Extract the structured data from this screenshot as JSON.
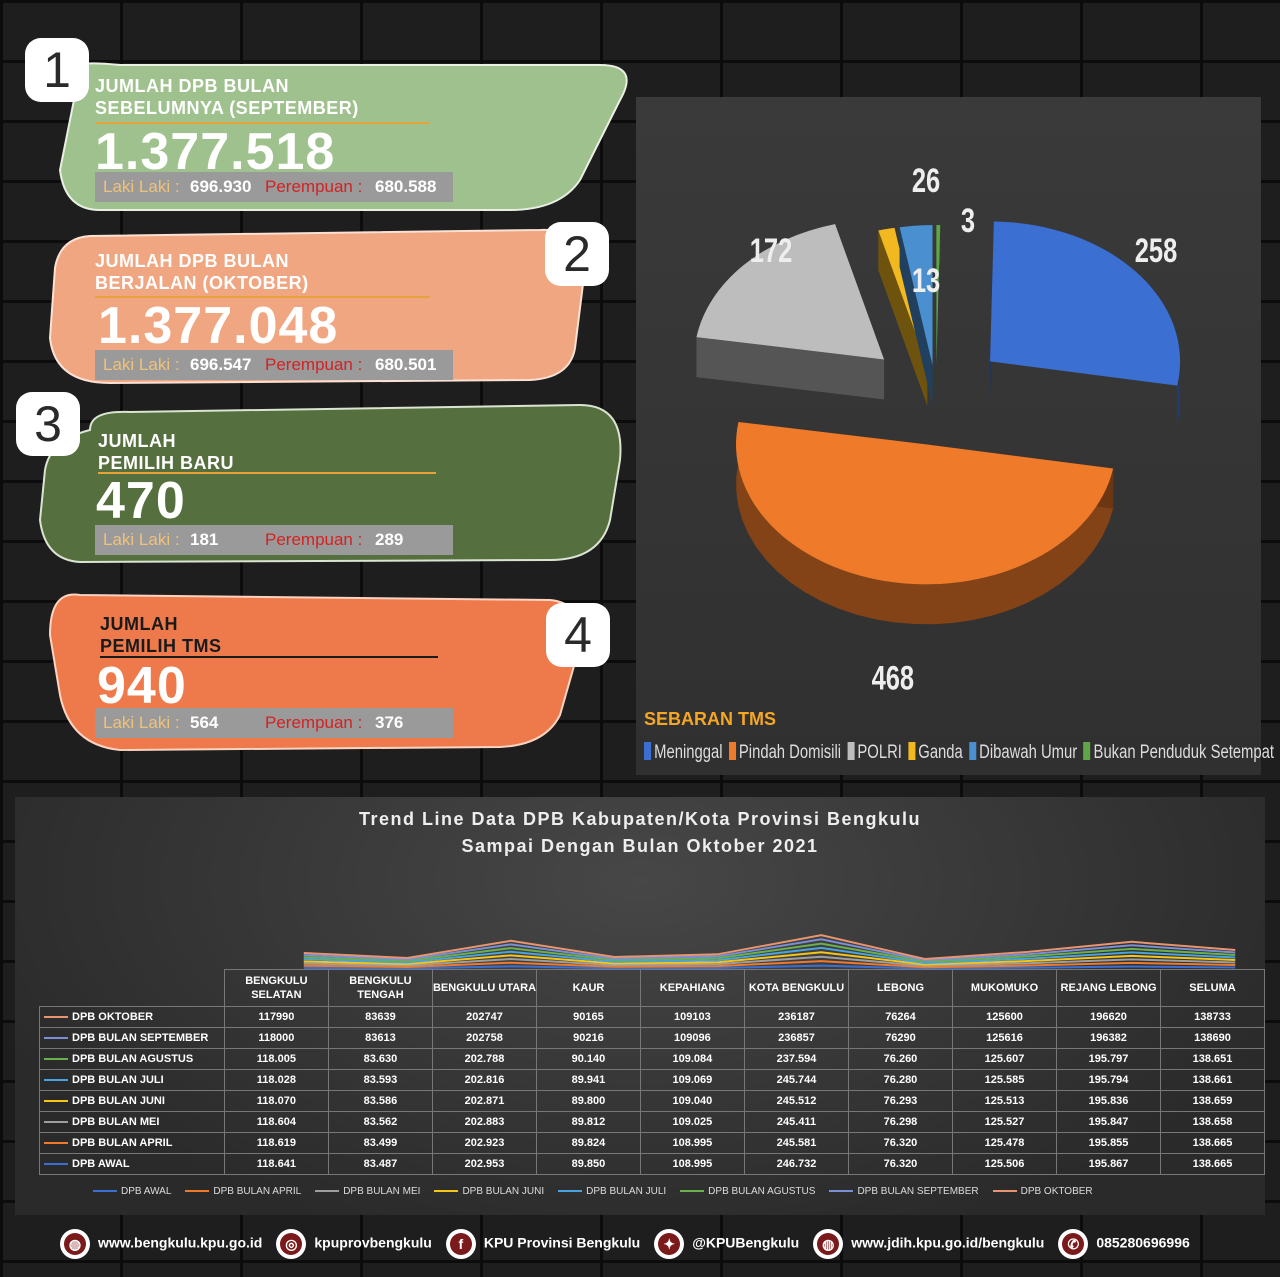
{
  "cards": [
    {
      "number": "1",
      "title_line1": "JUMLAH DPB BULAN",
      "title_line2": "SEBELUMNYA (SEPTEMBER)",
      "total": "1.377.518",
      "male_label": "Laki Laki :",
      "male": "696.930",
      "female_label": "Perempuan :",
      "female": "680.588",
      "color": "#9fc18d"
    },
    {
      "number": "2",
      "title_line1": "JUMLAH DPB BULAN",
      "title_line2": "BERJALAN (OKTOBER)",
      "total": "1.377.048",
      "male_label": "Laki Laki :",
      "male": "696.547",
      "female_label": "Perempuan :",
      "female": "680.501",
      "color": "#f0a681"
    },
    {
      "number": "3",
      "title_line1": "JUMLAH",
      "title_line2": "PEMILIH BARU",
      "total": "470",
      "male_label": "Laki Laki :",
      "male": "181",
      "female_label": "Perempuan :",
      "female": "289",
      "color": "#55703e"
    },
    {
      "number": "4",
      "title_line1": "JUMLAH",
      "title_line2": "PEMILIH TMS",
      "total": "940",
      "male_label": "Laki Laki :",
      "male": "564",
      "female_label": "Perempuan :",
      "female": "376",
      "color": "#ee7a4b"
    }
  ],
  "pie": {
    "title": "SEBARAN TMS",
    "chart_data": {
      "type": "pie",
      "title": "SEBARAN TMS",
      "slices": [
        {
          "label": "Meninggal",
          "value": 258,
          "color": "#3b6fd1"
        },
        {
          "label": "Pindah Domisili",
          "value": 468,
          "color": "#ee7a2a"
        },
        {
          "label": "POLRI",
          "value": 172,
          "color": "#bdbdbd"
        },
        {
          "label": "Ganda",
          "value": 13,
          "color": "#f2b820"
        },
        {
          "label": "Dibawah Umur",
          "value": 26,
          "color": "#4a8fd0"
        },
        {
          "label": "Bukan Penduduk Setempat",
          "value": 3,
          "color": "#5ea64a"
        }
      ]
    }
  },
  "chart_data": {
    "type": "line",
    "title": "Trend Line Data DPB Kabupaten/Kota Provinsi Bengkulu",
    "subtitle": "Sampai Dengan Bulan Oktober 2021",
    "categories": [
      "BENGKULU SELATAN",
      "BENGKULU TENGAH",
      "BENGKULU UTARA",
      "KAUR",
      "KEPAHIANG",
      "KOTA BENGKULU",
      "LEBONG",
      "MUKOMUKO",
      "REJANG LEBONG",
      "SELUMA"
    ],
    "series": [
      {
        "name": "DPB OKTOBER",
        "color": "#e8956f",
        "values": [
          "117990",
          "83639",
          "202747",
          "90165",
          "109103",
          "236187",
          "76264",
          "125600",
          "196620",
          "138733"
        ]
      },
      {
        "name": "DPB BULAN SEPTEMBER",
        "color": "#7b8fd6",
        "values": [
          "118000",
          "83613",
          "202758",
          "90216",
          "109096",
          "236857",
          "76290",
          "125616",
          "196382",
          "138690"
        ]
      },
      {
        "name": "DPB BULAN AGUSTUS",
        "color": "#6ab04c",
        "values": [
          "118.005",
          "83.630",
          "202.788",
          "90.140",
          "109.084",
          "237.594",
          "76.260",
          "125.607",
          "195.797",
          "138.651"
        ]
      },
      {
        "name": "DPB BULAN JULI",
        "color": "#4aa3e0",
        "values": [
          "118.028",
          "83.593",
          "202.816",
          "89.941",
          "109.069",
          "245.744",
          "76.280",
          "125.585",
          "195.794",
          "138.661"
        ]
      },
      {
        "name": "DPB BULAN JUNI",
        "color": "#f5c518",
        "values": [
          "118.070",
          "83.586",
          "202.871",
          "89.800",
          "109.040",
          "245.512",
          "76.293",
          "125.513",
          "195.836",
          "138.659"
        ]
      },
      {
        "name": "DPB BULAN MEI",
        "color": "#9e9e9e",
        "values": [
          "118.604",
          "83.562",
          "202.883",
          "89.812",
          "109.025",
          "245.411",
          "76.298",
          "125.527",
          "195.847",
          "138.658"
        ]
      },
      {
        "name": "DPB BULAN APRIL",
        "color": "#ee7a2a",
        "values": [
          "118.619",
          "83.499",
          "202.923",
          "89.824",
          "108.995",
          "245.581",
          "76.320",
          "125.478",
          "195.855",
          "138.665"
        ]
      },
      {
        "name": "DPB AWAL",
        "color": "#3b6fd1",
        "values": [
          "118.641",
          "83.487",
          "202.953",
          "89.850",
          "108.995",
          "246.732",
          "76.320",
          "125.506",
          "195.867",
          "138.665"
        ]
      }
    ],
    "legend": [
      "DPB AWAL",
      "DPB BULAN APRIL",
      "DPB BULAN MEI",
      "DPB BULAN JUNI",
      "DPB BULAN JULI",
      "DPB BULAN AGUSTUS",
      "DPB BULAN SEPTEMBER",
      "DPB OKTOBER"
    ]
  },
  "footer": [
    {
      "icon": "globe-icon",
      "text": "www.bengkulu.kpu.go.id"
    },
    {
      "icon": "instagram-icon",
      "text": "kpuprovbengkulu"
    },
    {
      "icon": "facebook-icon",
      "text": "KPU Provinsi Bengkulu"
    },
    {
      "icon": "twitter-icon",
      "text": "@KPUBengkulu"
    },
    {
      "icon": "globe-icon",
      "text": "www.jdih.kpu.go.id/bengkulu"
    },
    {
      "icon": "whatsapp-icon",
      "text": "085280696996"
    }
  ]
}
